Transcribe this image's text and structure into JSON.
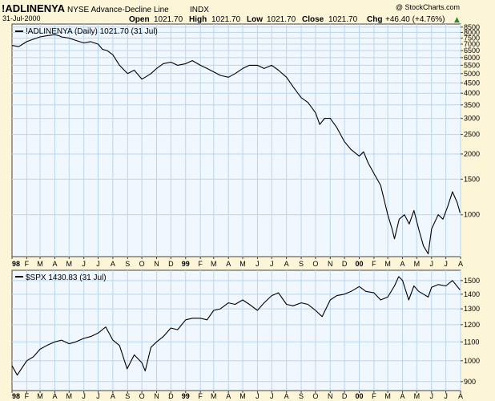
{
  "header": {
    "symbol": "!ADLINENYA",
    "name": "NYSE Advance-Decline Line",
    "type": "INDX",
    "date": "31-Jul-2000",
    "open_label": "Open",
    "open_value": "1021.70",
    "high_label": "High",
    "high_value": "1021.70",
    "low_label": "Low",
    "low_value": "1021.70",
    "close_label": "Close",
    "close_value": "1021.70",
    "chg_label": "Chg",
    "chg_value": "+46.40 (+4.76%)",
    "chg_arrow": "▲",
    "watermark": "@ StockCharts.com"
  },
  "colors": {
    "background": "#fdf5d8",
    "panel": "#f1f7fe",
    "grid": "#b9d6ee",
    "line": "#000000",
    "chg_positive": "#2a8a2a"
  },
  "chart_data": [
    {
      "type": "line",
      "scale": "log",
      "legend": "!ADLINENYA (Daily) 1021.70 (31 Jul)",
      "x_ticks": [
        "98",
        "F",
        "M",
        "A",
        "M",
        "J",
        "J",
        "A",
        "S",
        "O",
        "N",
        "D",
        "99",
        "F",
        "M",
        "A",
        "M",
        "J",
        "J",
        "A",
        "S",
        "O",
        "N",
        "D",
        "00",
        "F",
        "M",
        "A",
        "M",
        "J",
        "J",
        "A"
      ],
      "y_ticks": [
        1000,
        1500,
        2000,
        2500,
        3000,
        3500,
        4000,
        4500,
        5000,
        5500,
        6000,
        6500,
        7000,
        7500,
        8000,
        8500
      ],
      "ylim": [
        620,
        8800
      ],
      "x": [
        "1998-01-01",
        "1998-01-15",
        "1998-02-01",
        "1998-02-15",
        "1998-03-01",
        "1998-03-15",
        "1998-04-01",
        "1998-04-10",
        "1998-04-15",
        "1998-05-01",
        "1998-05-15",
        "1998-06-01",
        "1998-06-15",
        "1998-07-01",
        "1998-07-10",
        "1998-07-20",
        "1998-08-01",
        "1998-08-15",
        "1998-09-01",
        "1998-09-15",
        "1998-10-01",
        "1998-10-08",
        "1998-10-20",
        "1998-11-01",
        "1998-11-15",
        "1998-12-01",
        "1998-12-15",
        "1999-01-01",
        "1999-01-15",
        "1999-02-01",
        "1999-02-15",
        "1999-03-01",
        "1999-03-15",
        "1999-04-01",
        "1999-04-15",
        "1999-05-01",
        "1999-05-15",
        "1999-06-01",
        "1999-06-15",
        "1999-07-01",
        "1999-07-15",
        "1999-08-01",
        "1999-08-15",
        "1999-09-01",
        "1999-09-15",
        "1999-10-01",
        "1999-10-10",
        "1999-10-20",
        "1999-11-01",
        "1999-11-15",
        "1999-12-01",
        "1999-12-15",
        "2000-01-01",
        "2000-01-10",
        "2000-01-20",
        "2000-02-01",
        "2000-02-15",
        "2000-03-01",
        "2000-03-10",
        "2000-03-15",
        "2000-03-25",
        "2000-04-05",
        "2000-04-15",
        "2000-04-25",
        "2000-05-05",
        "2000-05-15",
        "2000-05-25",
        "2000-06-01",
        "2000-06-15",
        "2000-06-25",
        "2000-07-05",
        "2000-07-15",
        "2000-07-25",
        "2000-07-31"
      ],
      "values": [
        6900,
        6800,
        7200,
        7400,
        7600,
        7700,
        7800,
        7700,
        7600,
        7500,
        7300,
        7100,
        7200,
        7000,
        6600,
        6500,
        6200,
        5500,
        5000,
        5200,
        4700,
        4800,
        5000,
        5300,
        5600,
        5700,
        5500,
        5600,
        5800,
        5500,
        5300,
        5100,
        4900,
        4800,
        5000,
        5300,
        5500,
        5500,
        5300,
        5500,
        5200,
        4800,
        4300,
        3800,
        3600,
        3200,
        2800,
        3000,
        3000,
        2700,
        2300,
        2100,
        1950,
        2050,
        1800,
        1600,
        1400,
        1000,
        850,
        760,
        950,
        1000,
        900,
        1050,
        850,
        700,
        640,
        850,
        1000,
        950,
        1100,
        1300,
        1150,
        1021.7
      ]
    },
    {
      "type": "line",
      "scale": "log",
      "legend": "$SPX 1430.83 (31 Jul)",
      "x_ticks": [
        "98",
        "F",
        "M",
        "A",
        "M",
        "J",
        "J",
        "A",
        "S",
        "O",
        "N",
        "D",
        "99",
        "F",
        "M",
        "A",
        "M",
        "J",
        "J",
        "A",
        "S",
        "O",
        "N",
        "D",
        "00",
        "F",
        "M",
        "A",
        "M",
        "J",
        "J",
        "A"
      ],
      "y_ticks": [
        900,
        1000,
        1100,
        1200,
        1300,
        1400,
        1500
      ],
      "ylim": [
        860,
        1580
      ],
      "x": [
        "1998-01-01",
        "1998-01-12",
        "1998-02-01",
        "1998-02-15",
        "1998-03-01",
        "1998-03-15",
        "1998-04-01",
        "1998-04-15",
        "1998-05-01",
        "1998-05-15",
        "1998-06-01",
        "1998-06-15",
        "1998-07-01",
        "1998-07-17",
        "1998-08-01",
        "1998-08-15",
        "1998-08-31",
        "1998-09-15",
        "1998-10-01",
        "1998-10-08",
        "1998-10-20",
        "1998-11-01",
        "1998-11-15",
        "1998-12-01",
        "1998-12-15",
        "1999-01-01",
        "1999-01-15",
        "1999-02-01",
        "1999-02-15",
        "1999-03-01",
        "1999-03-15",
        "1999-04-01",
        "1999-04-15",
        "1999-05-01",
        "1999-05-15",
        "1999-06-01",
        "1999-06-15",
        "1999-07-01",
        "1999-07-15",
        "1999-08-01",
        "1999-08-15",
        "1999-09-01",
        "1999-09-15",
        "1999-10-01",
        "1999-10-15",
        "1999-11-01",
        "1999-11-15",
        "1999-12-01",
        "1999-12-15",
        "2000-01-01",
        "2000-01-15",
        "2000-02-01",
        "2000-02-15",
        "2000-03-01",
        "2000-03-15",
        "2000-03-24",
        "2000-04-01",
        "2000-04-14",
        "2000-04-25",
        "2000-05-05",
        "2000-05-15",
        "2000-05-25",
        "2000-06-01",
        "2000-06-15",
        "2000-07-01",
        "2000-07-15",
        "2000-07-31"
      ],
      "values": [
        975,
        930,
        1000,
        1020,
        1060,
        1080,
        1100,
        1110,
        1090,
        1100,
        1120,
        1130,
        1150,
        1186,
        1110,
        1080,
        960,
        1030,
        990,
        950,
        1070,
        1100,
        1130,
        1180,
        1170,
        1230,
        1240,
        1240,
        1230,
        1290,
        1300,
        1340,
        1330,
        1360,
        1330,
        1290,
        1340,
        1390,
        1410,
        1330,
        1320,
        1340,
        1330,
        1290,
        1250,
        1360,
        1390,
        1400,
        1420,
        1455,
        1420,
        1410,
        1360,
        1380,
        1460,
        1530,
        1500,
        1360,
        1460,
        1420,
        1400,
        1380,
        1450,
        1470,
        1460,
        1500,
        1430.83
      ]
    }
  ]
}
